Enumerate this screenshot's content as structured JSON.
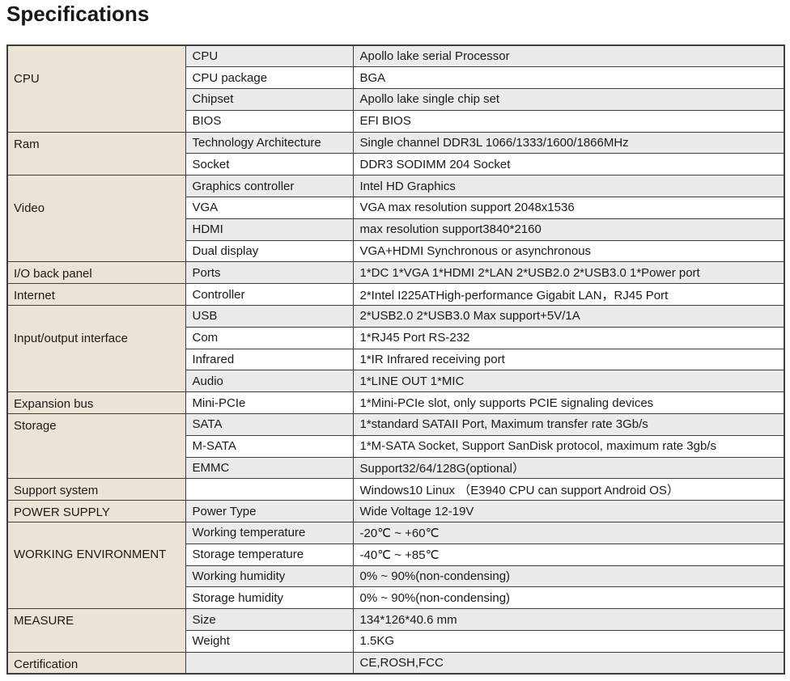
{
  "title": "Specifications",
  "colors": {
    "category_bg": "#ebe3d5",
    "shaded_row_bg": "#ebebeb",
    "row_bg": "#ffffff",
    "border": "#3d3d3d",
    "text": "#1a1a1a"
  },
  "table": {
    "groups": [
      {
        "label": "CPU",
        "span": 4
      },
      {
        "label": "Ram",
        "span": 2
      },
      {
        "label": "Video",
        "span": 4
      },
      {
        "label": "I/O back panel",
        "span": 1
      },
      {
        "label": "Internet",
        "span": 1
      },
      {
        "label": "Input/output interface",
        "span": 4
      },
      {
        "label": "Expansion bus",
        "span": 1
      },
      {
        "label": "Storage",
        "span": 3
      },
      {
        "label": "Support system",
        "span": 1
      },
      {
        "label": "POWER SUPPLY",
        "span": 1
      },
      {
        "label": "WORKING\nENVIRONMENT",
        "span": 4
      },
      {
        "label": "MEASURE",
        "span": 2
      },
      {
        "label": "Certification",
        "span": 1
      }
    ],
    "rows": [
      {
        "item": "CPU",
        "value": "Apollo lake serial Processor"
      },
      {
        "item": "CPU package",
        "value": "BGA"
      },
      {
        "item": "Chipset",
        "value": "Apollo lake single chip set"
      },
      {
        "item": "BIOS",
        "value": "EFI BIOS"
      },
      {
        "item": "Technology Architecture",
        "value": "Single channel DDR3L 1066/1333/1600/1866MHz"
      },
      {
        "item": "Socket",
        "value": "DDR3 SODIMM 204 Socket"
      },
      {
        "item": "Graphics controller",
        "value": "Intel HD Graphics"
      },
      {
        "item": "VGA",
        "value": "VGA max resolution support 2048x1536"
      },
      {
        "item": "HDMI",
        "value": "max resolution support3840*2160"
      },
      {
        "item": "Dual display",
        "value": "VGA+HDMI Synchronous or asynchronous"
      },
      {
        "item": "Ports",
        "value": "1*DC 1*VGA 1*HDMI 2*LAN 2*USB2.0 2*USB3.0 1*Power port"
      },
      {
        "item": "Controller",
        "value": "2*Intel I225ATHigh-performance Gigabit LAN，RJ45 Port"
      },
      {
        "item": "USB",
        "value": "2*USB2.0 2*USB3.0 Max support+5V/1A"
      },
      {
        "item": "Com",
        "value": "1*RJ45 Port RS-232"
      },
      {
        "item": "Infrared",
        "value": "1*IR Infrared receiving port"
      },
      {
        "item": "Audio",
        "value": "1*LINE OUT 1*MIC"
      },
      {
        "item": "Mini-PCIe",
        "value": "1*Mini-PCIe slot, only supports PCIE signaling devices"
      },
      {
        "item": "SATA",
        "value": "1*standard SATAII Port, Maximum transfer rate 3Gb/s"
      },
      {
        "item": "M-SATA",
        "value": "1*M-SATA Socket, Support SanDisk protocol, maximum rate 3gb/s"
      },
      {
        "item": "EMMC",
        "value": "Support32/64/128G(optional）"
      },
      {
        "item": "",
        "value": "Windows10 Linux （E3940 CPU can support Android OS）"
      },
      {
        "item": "Power Type",
        "value": "Wide Voltage 12-19V"
      },
      {
        "item": "Working temperature",
        "value": "-20℃ ~ +60℃"
      },
      {
        "item": "Storage temperature",
        "value": "-40℃ ~ +85℃"
      },
      {
        "item": "Working humidity",
        "value": "0% ~ 90%(non-condensing)"
      },
      {
        "item": "Storage humidity",
        "value": "0% ~ 90%(non-condensing)"
      },
      {
        "item": "Size",
        "value": "134*126*40.6 mm"
      },
      {
        "item": "Weight",
        "value": "1.5KG"
      },
      {
        "item": "",
        "value": "CE,ROSH,FCC"
      }
    ]
  }
}
